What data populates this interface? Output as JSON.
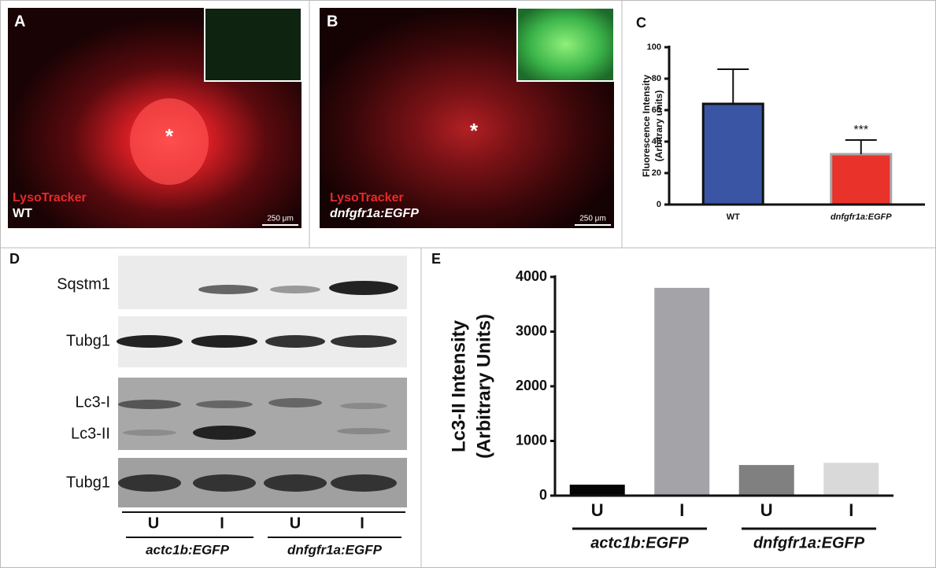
{
  "panels": {
    "a": {
      "label": "A",
      "marker": "*",
      "stain": "LysoTracker",
      "genotype": "WT",
      "scale": "250 μm"
    },
    "b": {
      "label": "B",
      "marker": "*",
      "stain": "LysoTracker",
      "genotype": "dnfgfr1a:EGFP",
      "scale": "250 μm"
    },
    "d": {
      "label": "D",
      "rows": [
        "Sqstm1",
        "Tubg1",
        "Lc3-I",
        "Lc3-II",
        "Tubg1"
      ],
      "lanes": [
        "U",
        "I",
        "U",
        "I"
      ],
      "groups": [
        "actc1b:EGFP",
        "dnfgfr1a:EGFP"
      ]
    }
  },
  "chart_data": [
    {
      "type": "bar",
      "panel_label": "C",
      "ylabel": [
        "Fluorescence Intensity",
        "(Arbitrary units)"
      ],
      "categories": [
        "WT",
        "dnfgfr1a:EGFP"
      ],
      "values": [
        64,
        32
      ],
      "errors": [
        22,
        9
      ],
      "colors": [
        "#3a55a4",
        "#e8322a"
      ],
      "edgecolors": [
        "#111111",
        "#a6a6a6"
      ],
      "annotation": "***",
      "ylim": [
        0,
        100
      ],
      "yticks": [
        0,
        20,
        40,
        60,
        80,
        100
      ]
    },
    {
      "type": "bar",
      "panel_label": "E",
      "ylabel": [
        "Lc3-II Intensity",
        "(Arbitrary Units)"
      ],
      "categories": [
        "U",
        "I",
        "U",
        "I"
      ],
      "groups": [
        "actc1b:EGFP",
        "dnfgfr1a:EGFP"
      ],
      "values": [
        200,
        3800,
        560,
        600
      ],
      "colors": [
        "#050505",
        "#a3a3a8",
        "#808080",
        "#d9d9d9"
      ],
      "ylim": [
        0,
        4000
      ],
      "yticks": [
        0,
        1000,
        2000,
        3000,
        4000
      ]
    }
  ]
}
